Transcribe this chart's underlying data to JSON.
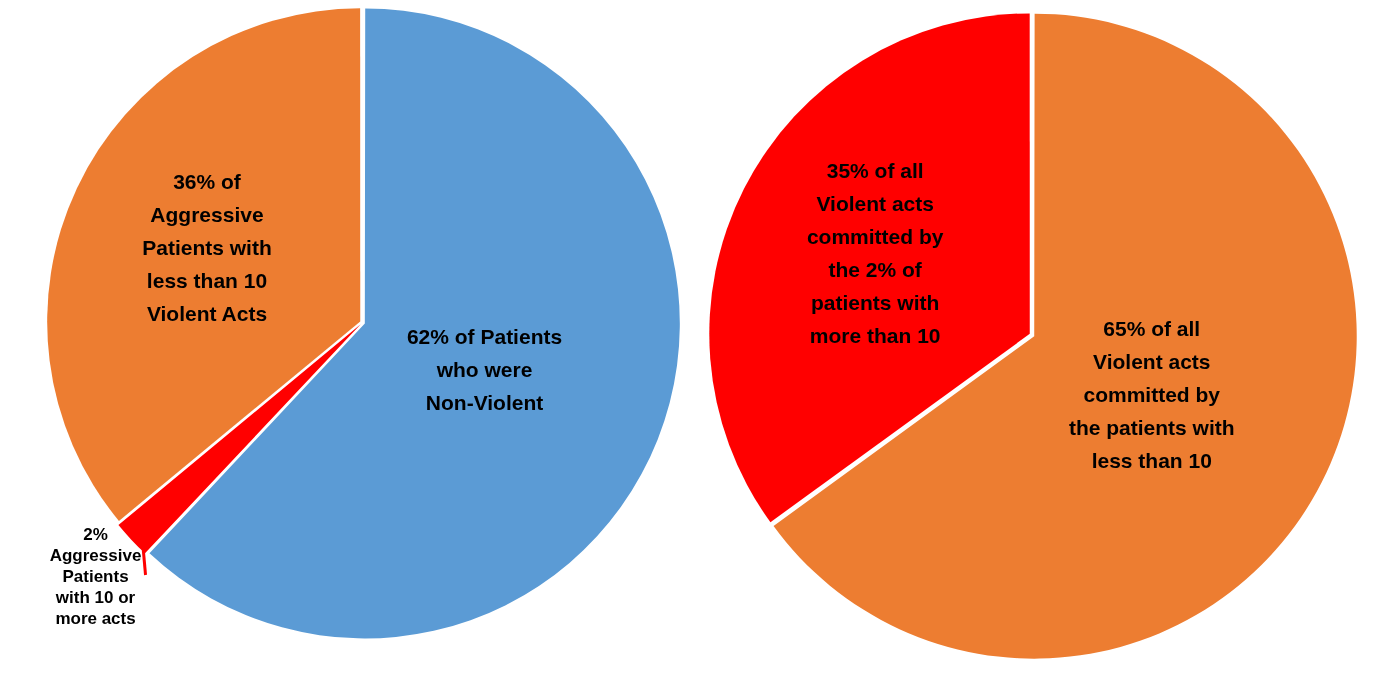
{
  "chart_data": [
    {
      "type": "pie",
      "categories": [
        "62% of Patients who were Non-Violent",
        "2% Aggressive Patients with 10 or more acts",
        "36% of Aggressive Patients with less than 10 Violent Acts"
      ],
      "values": [
        62,
        2,
        36
      ],
      "colors": [
        "#5b9bd5",
        "#ff0000",
        "#ed7d31"
      ]
    },
    {
      "type": "pie",
      "categories": [
        "65% of all Violent acts committed by the patients with less than 10",
        "35% of all Violent acts committed by the 2% of patients with more than 10"
      ],
      "values": [
        65,
        35
      ],
      "colors": [
        "#ed7d31",
        "#ff0000"
      ]
    }
  ]
}
